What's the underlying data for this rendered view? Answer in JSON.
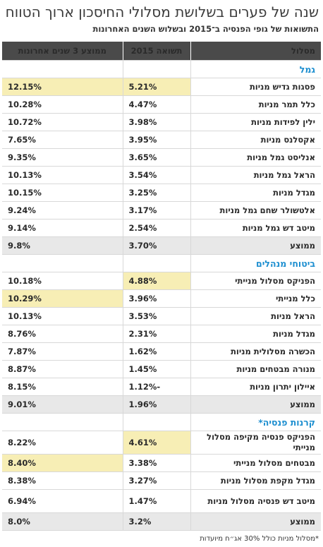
{
  "header": {
    "title": "שנה של פערים בשלושת מסלולי החיסכון ארוך הטווח",
    "subtitle": "התשואות של גופי הפנסיה ב־2015 ובשלוש השנים האחרונות"
  },
  "columns": {
    "fund": "מסלול",
    "y2015": "תשואה 2015",
    "avg3": "ממוצע 3 שנים אחרונות"
  },
  "colors": {
    "header_bg": "#4a4a4a",
    "section_text": "#1e8fd0",
    "highlight": "#f7eeb5",
    "average_bg": "#e8e8e8"
  },
  "sections": [
    {
      "name": "גמל",
      "rows": [
        {
          "fund": "פסגות גדיש מניות",
          "y2015": "5.21%",
          "avg3": "12.15%"
        },
        {
          "fund": "כלל תמר מניות",
          "y2015": "4.47%",
          "avg3": "10.28%"
        },
        {
          "fund": "ילין לפידות מניות",
          "y2015": "3.98%",
          "avg3": "10.72%"
        },
        {
          "fund": "אקסלנס מניות",
          "y2015": "3.95%",
          "avg3": "7.65%"
        },
        {
          "fund": "אנליסט גמל מניות",
          "y2015": "3.65%",
          "avg3": "9.35%"
        },
        {
          "fund": "הראל גמל מניות",
          "y2015": "3.54%",
          "avg3": "10.13%"
        },
        {
          "fund": "מגדל מניות",
          "y2015": "3.25%",
          "avg3": "10.15%"
        },
        {
          "fund": "אלטשולר שחם גמל מניות",
          "y2015": "3.17%",
          "avg3": "9.24%"
        },
        {
          "fund": "מיטב דש גמל מניות",
          "y2015": "2.54%",
          "avg3": "9.14%"
        }
      ],
      "average": {
        "fund": "ממוצע",
        "y2015": "3.70%",
        "avg3": "9.8%"
      }
    },
    {
      "name": "ביטוחי מנהלים",
      "rows": [
        {
          "fund": "הפניקס מסלול מנייתי",
          "y2015": "4.88%",
          "avg3": "10.18%"
        },
        {
          "fund": "כלל מנייתי",
          "y2015": "3.96%",
          "avg3": "10.29%"
        },
        {
          "fund": "הראל מניות",
          "y2015": "3.53%",
          "avg3": "10.13%"
        },
        {
          "fund": "מגדל מניות",
          "y2015": "2.31%",
          "avg3": "8.76%"
        },
        {
          "fund": "הכשרה מסלולית מניות",
          "y2015": "1.62%",
          "avg3": "7.87%"
        },
        {
          "fund": "מנורה מבטחים מניות",
          "y2015": "1.45%",
          "avg3": "8.87%"
        },
        {
          "fund": "איילון יתרון מניות",
          "y2015": "1.12%-",
          "avg3": "8.15%"
        }
      ],
      "average": {
        "fund": "ממוצע",
        "y2015": "1.96%",
        "avg3": "9.01%"
      }
    },
    {
      "name": "קרנות פנסיה*",
      "rows": [
        {
          "fund": "הפניקס פנסיה מקיפה מסלול מנייתי",
          "y2015": "4.61%",
          "avg3": "8.22%"
        },
        {
          "fund": "מבטחים מסלול מנייתי",
          "y2015": "3.38%",
          "avg3": "8.40%"
        },
        {
          "fund": "מגדל מקפת מסלול מניות",
          "y2015": "3.27%",
          "avg3": "8.38%"
        },
        {
          "fund": "מיטב דש פנסיה מסלול מניות",
          "y2015": "1.47%",
          "avg3": "6.94%"
        }
      ],
      "average": {
        "fund": "ממוצע",
        "y2015": "3.2%",
        "avg3": "8.0%"
      }
    }
  ],
  "footnote": "*מסלול מניות כולל 30% אג״ח מיועדות"
}
